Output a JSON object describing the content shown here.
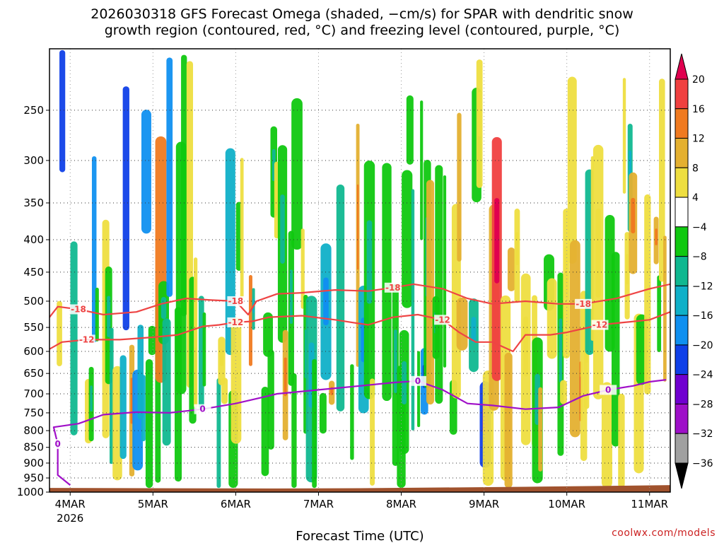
{
  "chart_data": {
    "type": "heatmap",
    "title_line1": "2026030318 GFS Forecast Omega (shaded, −cm/s) for SPAR with dendritic snow",
    "title_line2": "growth region (contoured, red, °C) and freezing level (contoured, purple, °C)",
    "xlabel": "Forecast Time (UTC)",
    "x_ticks": [
      "4MAR",
      "5MAR",
      "6MAR",
      "7MAR",
      "8MAR",
      "9MAR",
      "10MAR",
      "11MAR"
    ],
    "x_tick_year": "2026",
    "y_ticks": [
      250,
      300,
      350,
      400,
      450,
      500,
      550,
      600,
      650,
      700,
      750,
      800,
      850,
      900,
      950,
      1000
    ],
    "y_range_hPa": [
      200,
      1000
    ],
    "x_range_days": [
      3.75,
      11.25
    ],
    "colorbar": {
      "labels": [
        "20",
        "16",
        "12",
        "8",
        "4",
        "−4",
        "−8",
        "−12",
        "−16",
        "−20",
        "−24",
        "−28",
        "−32",
        "−36"
      ],
      "colors": [
        "#e0004f",
        "#f04040",
        "#f07a20",
        "#e4b030",
        "#eede40",
        "#ffffff",
        "#10c810",
        "#10b890",
        "#10b0c8",
        "#1090f0",
        "#1040e8",
        "#7000d0",
        "#9e10c8",
        "#a0a0a0",
        "#000000"
      ]
    },
    "contours": [
      {
        "label": "-18",
        "color": "#ee4444",
        "points": [
          [
            3.75,
            530
          ],
          [
            3.85,
            510
          ],
          [
            4.1,
            515
          ],
          [
            4.4,
            525
          ],
          [
            4.8,
            520
          ],
          [
            5.1,
            505
          ],
          [
            5.4,
            495
          ],
          [
            5.7,
            498
          ],
          [
            6.0,
            500
          ],
          [
            6.15,
            525
          ],
          [
            6.25,
            500
          ],
          [
            6.5,
            487
          ],
          [
            6.8,
            485
          ],
          [
            7.2,
            480
          ],
          [
            7.6,
            482
          ],
          [
            7.9,
            476
          ],
          [
            8.15,
            470
          ],
          [
            8.5,
            478
          ],
          [
            8.8,
            495
          ],
          [
            9.1,
            505
          ],
          [
            9.5,
            500
          ],
          [
            9.9,
            505
          ],
          [
            10.2,
            505
          ],
          [
            10.6,
            495
          ],
          [
            11.0,
            478
          ],
          [
            11.25,
            470
          ]
        ]
      },
      {
        "label": "-12",
        "color": "#ee4444",
        "points": [
          [
            3.75,
            595
          ],
          [
            3.9,
            580
          ],
          [
            4.2,
            575
          ],
          [
            4.6,
            575
          ],
          [
            5.0,
            570
          ],
          [
            5.3,
            565
          ],
          [
            5.6,
            548
          ],
          [
            5.8,
            545
          ],
          [
            6.0,
            540
          ],
          [
            6.2,
            538
          ],
          [
            6.4,
            530
          ],
          [
            6.8,
            527
          ],
          [
            7.2,
            535
          ],
          [
            7.6,
            545
          ],
          [
            7.9,
            530
          ],
          [
            8.2,
            525
          ],
          [
            8.5,
            535
          ],
          [
            8.7,
            560
          ],
          [
            8.9,
            580
          ],
          [
            9.1,
            580
          ],
          [
            9.35,
            600
          ],
          [
            9.5,
            565
          ],
          [
            9.8,
            565
          ],
          [
            10.0,
            560
          ],
          [
            10.4,
            545
          ],
          [
            10.7,
            540
          ],
          [
            11.0,
            535
          ],
          [
            11.25,
            520
          ]
        ]
      },
      {
        "label": "0",
        "color": "#a010c8",
        "points": [
          [
            4.0,
            975
          ],
          [
            3.85,
            940
          ],
          [
            3.85,
            840
          ],
          [
            3.8,
            790
          ],
          [
            4.1,
            780
          ],
          [
            4.4,
            755
          ],
          [
            4.8,
            748
          ],
          [
            5.2,
            750
          ],
          [
            5.6,
            740
          ],
          [
            6.0,
            725
          ],
          [
            6.3,
            710
          ],
          [
            6.5,
            700
          ],
          [
            7.0,
            690
          ],
          [
            7.5,
            680
          ],
          [
            7.9,
            672
          ],
          [
            8.2,
            668
          ],
          [
            8.5,
            690
          ],
          [
            8.8,
            725
          ],
          [
            9.1,
            730
          ],
          [
            9.5,
            740
          ],
          [
            9.9,
            735
          ],
          [
            10.2,
            705
          ],
          [
            10.5,
            690
          ],
          [
            10.8,
            680
          ],
          [
            11.0,
            670
          ],
          [
            11.2,
            665
          ]
        ]
      }
    ],
    "surface_fill": "#a0522d",
    "grid": "dotted"
  },
  "credit": "coolwx.com/models"
}
